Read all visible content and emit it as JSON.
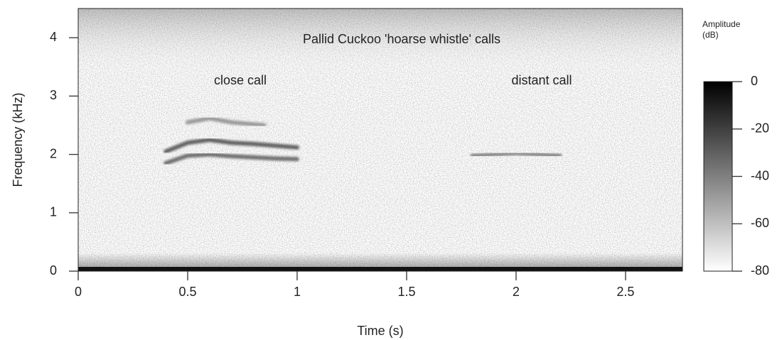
{
  "chart_data": {
    "type": "spectrogram",
    "title": "Pallid Cuckoo 'hoarse whistle' calls",
    "annotations": [
      "close call",
      "distant call"
    ],
    "x_label": "Time (s)",
    "y_label": "Frequency (kHz)",
    "xlim": [
      0,
      2.76
    ],
    "xticks": [
      0,
      0.5,
      1,
      1.5,
      2,
      2.5
    ],
    "ylim": [
      0,
      4.5
    ],
    "yticks": [
      0,
      1,
      2,
      3,
      4
    ],
    "series": [
      {
        "color": "#5a5a5a",
        "x": [
          0.4,
          0.5,
          0.6,
          0.7,
          0.8,
          0.9,
          1.0
        ],
        "values": [
          1.85,
          1.98,
          2.0,
          1.97,
          1.95,
          1.93,
          1.92
        ]
      },
      {
        "color": "#4a4a4a",
        "x": [
          0.4,
          0.5,
          0.6,
          0.7,
          0.8,
          0.9,
          1.0
        ],
        "values": [
          2.05,
          2.2,
          2.25,
          2.2,
          2.18,
          2.15,
          2.12
        ]
      },
      {
        "color": "#8a8a8a",
        "x": [
          0.5,
          0.6,
          0.7,
          0.85
        ],
        "values": [
          2.55,
          2.62,
          2.55,
          2.5
        ]
      },
      {
        "color": "#7a7a7a",
        "x": [
          1.8,
          1.9,
          2.0,
          2.1,
          2.2
        ],
        "values": [
          1.98,
          2.0,
          2.02,
          2.0,
          1.98
        ]
      }
    ],
    "colorbar_label": [
      "Amplitude",
      "(dB)"
    ],
    "colorbar_lim": [
      -80,
      0
    ],
    "colorbar_ticks": [
      0,
      -20,
      -40,
      -60,
      -80
    ],
    "colormap": [
      "#ffffff",
      "#000000"
    ]
  }
}
